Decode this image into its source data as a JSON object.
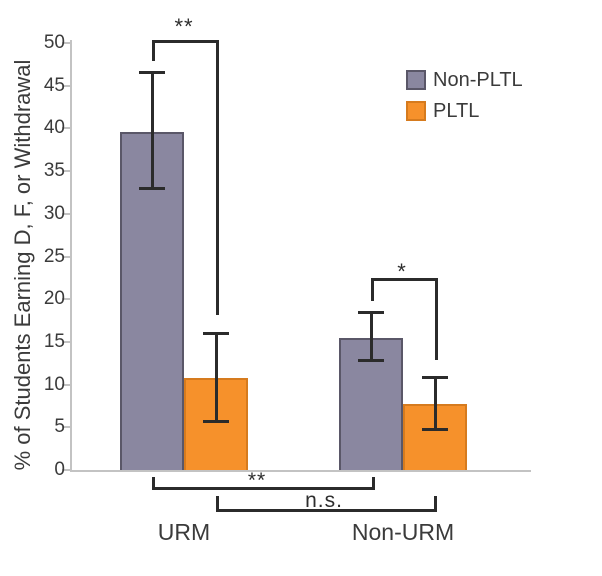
{
  "figure": {
    "background": "#ffffff"
  },
  "chart_data": {
    "type": "bar",
    "title": "",
    "xlabel": "",
    "ylabel": "% of Students Earning D, F, or Withdrawal",
    "ylim": [
      0,
      50
    ],
    "yticks": [
      0,
      5,
      10,
      15,
      20,
      25,
      30,
      35,
      40,
      45,
      50
    ],
    "grid": false,
    "categories": [
      "URM",
      "Non-URM"
    ],
    "series": [
      {
        "name": "Non-PLTL",
        "color": "#8a87a0",
        "border_color": "#5a5768",
        "values": [
          39.6,
          15.5
        ],
        "error_high": [
          46.6,
          18.4
        ],
        "error_low": [
          33.0,
          12.8
        ]
      },
      {
        "name": "PLTL",
        "color": "#f6912b",
        "border_color": "#d67b1e",
        "values": [
          10.8,
          7.7
        ],
        "error_high": [
          16.0,
          10.8
        ],
        "error_low": [
          5.7,
          4.7
        ]
      }
    ],
    "legend": {
      "position": "top-right",
      "entries": [
        "Non-PLTL",
        "PLTL"
      ]
    },
    "annotations": [
      {
        "id": "urm-within",
        "label": "**",
        "compares": "URM: Non-PLTL vs PLTL"
      },
      {
        "id": "nonurm-within",
        "label": "*",
        "compares": "Non-URM: Non-PLTL vs PLTL"
      },
      {
        "id": "nonpltl-across",
        "label": "**",
        "compares": "Non-PLTL: URM vs Non-URM"
      },
      {
        "id": "pltl-across",
        "label": "n.s.",
        "compares": "PLTL: URM vs Non-URM"
      }
    ],
    "error_bar_color": "#2b2b2b",
    "axis_color": "#c3c3c3",
    "text_color": "#3b3b3b"
  }
}
